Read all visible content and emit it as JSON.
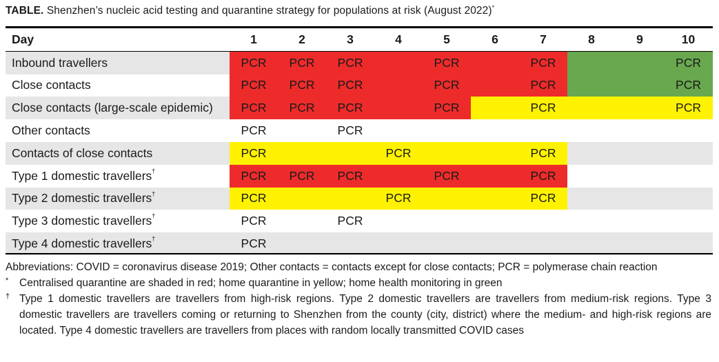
{
  "caption": {
    "label": "TABLE.",
    "text": "Shenzhen’s nucleic acid testing and quarantine strategy for populations at risk (August 2022)",
    "mark": "*"
  },
  "table": {
    "header_first": "Day",
    "days": [
      "1",
      "2",
      "3",
      "4",
      "5",
      "6",
      "7",
      "8",
      "9",
      "10"
    ],
    "colors": {
      "red": "#ee2b2b",
      "yellow": "#fff200",
      "green": "#69a84f",
      "zebra": "#e6e6e6"
    },
    "rows": [
      {
        "label": "Inbound travellers",
        "mark": "",
        "shade": [
          "red",
          "red",
          "red",
          "red",
          "red",
          "red",
          "red",
          "green",
          "green",
          "green"
        ],
        "text": [
          "PCR",
          "PCR",
          "PCR",
          "",
          "PCR",
          "",
          "PCR",
          "",
          "",
          "PCR"
        ]
      },
      {
        "label": "Close contacts",
        "mark": "",
        "shade": [
          "red",
          "red",
          "red",
          "red",
          "red",
          "red",
          "red",
          "green",
          "green",
          "green"
        ],
        "text": [
          "PCR",
          "PCR",
          "PCR",
          "",
          "PCR",
          "",
          "PCR",
          "",
          "",
          "PCR"
        ]
      },
      {
        "label": "Close contacts (large-scale epidemic)",
        "mark": "",
        "shade": [
          "red",
          "red",
          "red",
          "red",
          "red",
          "yellow",
          "yellow",
          "yellow",
          "yellow",
          "yellow"
        ],
        "text": [
          "PCR",
          "PCR",
          "PCR",
          "",
          "PCR",
          "",
          "PCR",
          "",
          "",
          "PCR"
        ]
      },
      {
        "label": "Other contacts",
        "mark": "",
        "shade": [
          "none",
          "none",
          "none",
          "none",
          "none",
          "none",
          "none",
          "none",
          "none",
          "none"
        ],
        "text": [
          "PCR",
          "",
          "PCR",
          "",
          "",
          "",
          "",
          "",
          "",
          ""
        ]
      },
      {
        "label": "Contacts of close contacts",
        "mark": "",
        "shade": [
          "yellow",
          "yellow",
          "yellow",
          "yellow",
          "yellow",
          "yellow",
          "yellow",
          "none",
          "none",
          "none"
        ],
        "text": [
          "PCR",
          "",
          "",
          "PCR",
          "",
          "",
          "PCR",
          "",
          "",
          ""
        ]
      },
      {
        "label": "Type 1 domestic travellers",
        "mark": "†",
        "shade": [
          "red",
          "red",
          "red",
          "red",
          "red",
          "red",
          "red",
          "none",
          "none",
          "none"
        ],
        "text": [
          "PCR",
          "PCR",
          "PCR",
          "",
          "PCR",
          "",
          "PCR",
          "",
          "",
          ""
        ]
      },
      {
        "label": "Type 2 domestic travellers",
        "mark": "†",
        "shade": [
          "yellow",
          "yellow",
          "yellow",
          "yellow",
          "yellow",
          "yellow",
          "yellow",
          "none",
          "none",
          "none"
        ],
        "text": [
          "PCR",
          "",
          "",
          "PCR",
          "",
          "",
          "PCR",
          "",
          "",
          ""
        ]
      },
      {
        "label": "Type 3 domestic travellers",
        "mark": "†",
        "shade": [
          "none",
          "none",
          "none",
          "none",
          "none",
          "none",
          "none",
          "none",
          "none",
          "none"
        ],
        "text": [
          "PCR",
          "",
          "PCR",
          "",
          "",
          "",
          "",
          "",
          "",
          ""
        ]
      },
      {
        "label": "Type 4 domestic travellers",
        "mark": "†",
        "shade": [
          "none",
          "none",
          "none",
          "none",
          "none",
          "none",
          "none",
          "none",
          "none",
          "none"
        ],
        "text": [
          "PCR",
          "",
          "",
          "",
          "",
          "",
          "",
          "",
          "",
          ""
        ]
      }
    ]
  },
  "notes": {
    "abbreviations": "Abbreviations: COVID = coronavirus disease 2019; Other contacts = contacts except for close contacts; PCR = polymerase chain reaction",
    "footnote_star_mark": "*",
    "footnote_star": "Centralised quarantine are shaded in red; home quarantine in yellow; home health monitoring in green",
    "footnote_dagger_mark": "†",
    "footnote_dagger": "Type 1 domestic travellers are travellers from high-risk regions. Type 2 domestic travellers are travellers from medium-risk regions. Type 3 domestic travellers are travellers coming or returning to Shenzhen from the county (city, district) where the medium- and high-risk regions are located. Type 4 domestic travellers are travellers from places with random locally transmitted COVID cases"
  }
}
